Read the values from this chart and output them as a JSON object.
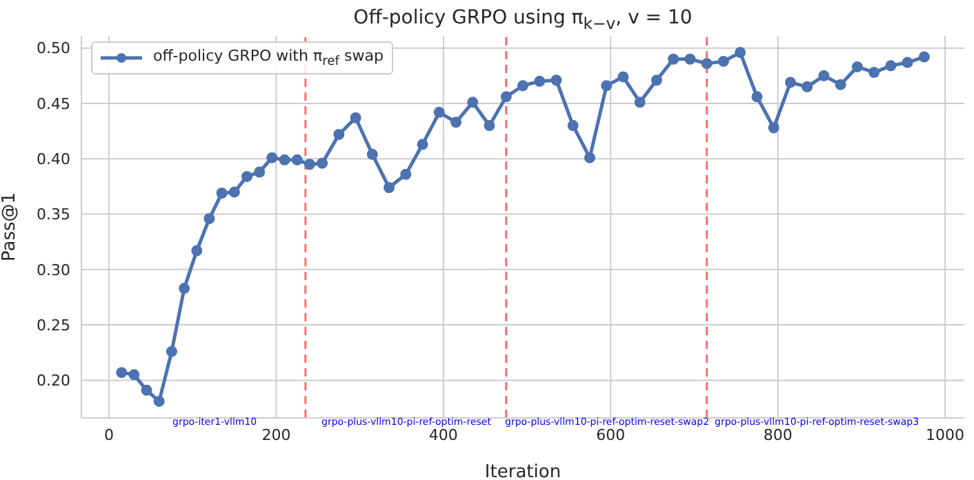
{
  "chart_data": {
    "type": "line",
    "title": "Off-policy GRPO using π$_{k−v}$, v = 10",
    "xlabel": "Iteration",
    "ylabel": "Pass@1",
    "x": [
      15,
      30,
      45,
      60,
      75,
      90,
      105,
      120,
      135,
      150,
      165,
      180,
      195,
      210,
      225,
      240,
      255,
      275,
      295,
      315,
      335,
      355,
      375,
      395,
      415,
      435,
      455,
      475,
      495,
      515,
      535,
      555,
      575,
      595,
      615,
      635,
      655,
      675,
      695,
      715,
      735,
      755,
      775,
      795,
      815,
      835,
      855,
      875,
      895,
      915,
      935,
      955,
      975
    ],
    "series": [
      {
        "name": "off-policy GRPO with π$_{ref}$ swap",
        "color": "#4c72b0",
        "values": [
          0.207,
          0.205,
          0.191,
          0.181,
          0.226,
          0.283,
          0.317,
          0.346,
          0.369,
          0.37,
          0.384,
          0.388,
          0.401,
          0.399,
          0.399,
          0.395,
          0.396,
          0.422,
          0.437,
          0.404,
          0.374,
          0.386,
          0.413,
          0.442,
          0.433,
          0.451,
          0.43,
          0.456,
          0.466,
          0.47,
          0.471,
          0.43,
          0.401,
          0.466,
          0.474,
          0.451,
          0.471,
          0.49,
          0.49,
          0.486,
          0.488,
          0.496,
          0.456,
          0.428,
          0.469,
          0.465,
          0.475,
          0.467,
          0.483,
          0.478,
          0.484,
          0.487,
          0.492
        ]
      }
    ],
    "xlim": [
      -33,
      1023
    ],
    "xticks": [
      0,
      200,
      400,
      600,
      800,
      1000
    ],
    "ylim": [
      0.166,
      0.511
    ],
    "yticks": [
      {
        "value": 0.2,
        "label": "0.20"
      },
      {
        "value": 0.25,
        "label": "0.25"
      },
      {
        "value": 0.3,
        "label": "0.30"
      },
      {
        "value": 0.35,
        "label": "0.35"
      },
      {
        "value": 0.4,
        "label": "0.40"
      },
      {
        "value": 0.45,
        "label": "0.45"
      },
      {
        "value": 0.5,
        "label": "0.50"
      }
    ],
    "ref_lines": [
      {
        "axis": "x",
        "value": 235,
        "color": "#ff6b6b",
        "line_style": "dashed"
      },
      {
        "axis": "x",
        "value": 475,
        "color": "#ff6b6b",
        "line_style": "dashed"
      },
      {
        "axis": "x",
        "value": 715,
        "color": "#ff6b6b",
        "line_style": "dashed"
      }
    ],
    "annotations": [
      "grpo-iter1-vllm10",
      "grpo-plus-vllm10-pi-ref-optim-reset",
      "grpo-plus-vllm10-pi-ref-optim-reset-swap2",
      "grpo-plus-vllm10-pi-ref-optim-reset-swap3"
    ],
    "grid": true,
    "legend": "top left",
    "marker": "circle",
    "line_style": "solid"
  }
}
